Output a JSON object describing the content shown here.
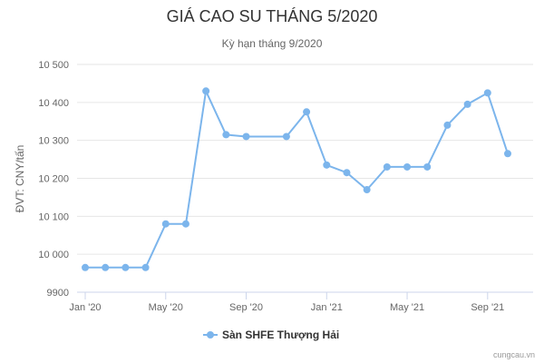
{
  "chart_data": {
    "type": "line",
    "title": "GIÁ CAO SU THÁNG 5/2020",
    "subtitle": "Kỳ hạn tháng 9/2020",
    "xlabel": "",
    "ylabel": "ĐVT: CNY/tấn",
    "credit": "cungcau.vn",
    "color": "#7cb5ec",
    "grid": true,
    "legend_position": "bottom-center",
    "ylim": [
      9900,
      10500
    ],
    "y_ticks": [
      9900,
      10000,
      10100,
      10200,
      10300,
      10400,
      10500
    ],
    "y_tick_labels": [
      "9900",
      "10 000",
      "10 100",
      "10 200",
      "10 300",
      "10 400",
      "10 500"
    ],
    "x_ticks": [
      {
        "label": "Jan '20",
        "x": 0
      },
      {
        "label": "May '20",
        "x": 4
      },
      {
        "label": "Sep '20",
        "x": 8
      },
      {
        "label": "Jan '21",
        "x": 12
      },
      {
        "label": "May '21",
        "x": 16
      },
      {
        "label": "Sep '21",
        "x": 20
      }
    ],
    "series": [
      {
        "name": "Sàn SHFE Thượng Hải",
        "x": [
          0,
          1,
          2,
          3,
          4,
          5,
          6,
          7,
          8,
          10,
          11,
          12,
          13,
          14,
          15,
          16,
          17,
          18,
          19,
          20,
          21
        ],
        "values": [
          9965,
          9965,
          9965,
          9965,
          10080,
          10080,
          10430,
          10315,
          10310,
          10310,
          10375,
          10235,
          10215,
          10170,
          10230,
          10230,
          10230,
          10340,
          10395,
          10425,
          10265
        ]
      }
    ]
  }
}
